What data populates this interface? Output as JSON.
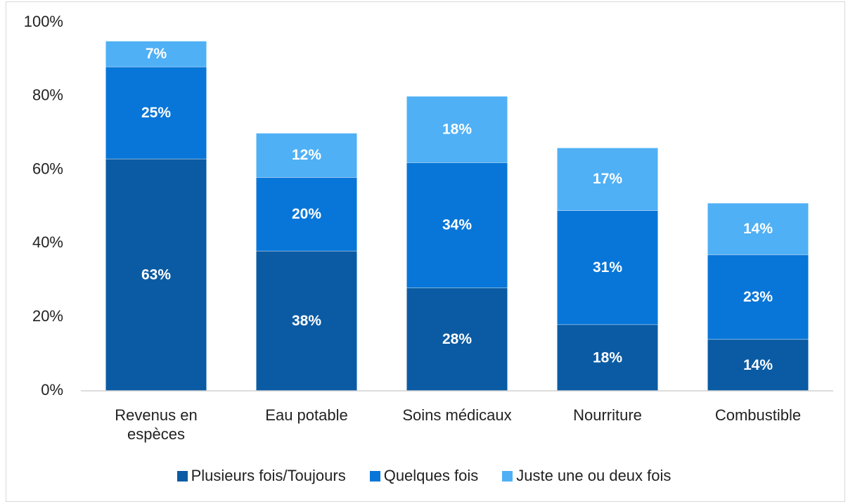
{
  "chart_data": {
    "type": "stacked_bar",
    "categories": [
      "Revenus en espèces",
      "Eau potable",
      "Soins médicaux",
      "Nourriture",
      "Combustible"
    ],
    "series": [
      {
        "name": "Plusieurs fois/Toujours",
        "color": "#0a5ba3",
        "values": [
          63,
          38,
          28,
          18,
          14
        ],
        "value_labels": [
          "63%",
          "38%",
          "28%",
          "18%",
          "14%"
        ]
      },
      {
        "name": "Quelques fois",
        "color": "#0876d8",
        "values": [
          25,
          20,
          34,
          31,
          23
        ],
        "value_labels": [
          "25%",
          "20%",
          "34%",
          "31%",
          "23%"
        ]
      },
      {
        "name": "Juste une ou deux fois",
        "color": "#4fb0f5",
        "values": [
          7,
          12,
          18,
          17,
          14
        ],
        "value_labels": [
          "7%",
          "12%",
          "18%",
          "17%",
          "14%"
        ]
      }
    ],
    "ylim": [
      0,
      100
    ],
    "yticks": [
      {
        "value": 0,
        "label": "0%"
      },
      {
        "value": 20,
        "label": "20%"
      },
      {
        "value": 40,
        "label": "40%"
      },
      {
        "value": 60,
        "label": "60%"
      },
      {
        "value": 80,
        "label": "80%"
      },
      {
        "value": 100,
        "label": "100%"
      }
    ],
    "grid": false,
    "legend": "bottom"
  }
}
